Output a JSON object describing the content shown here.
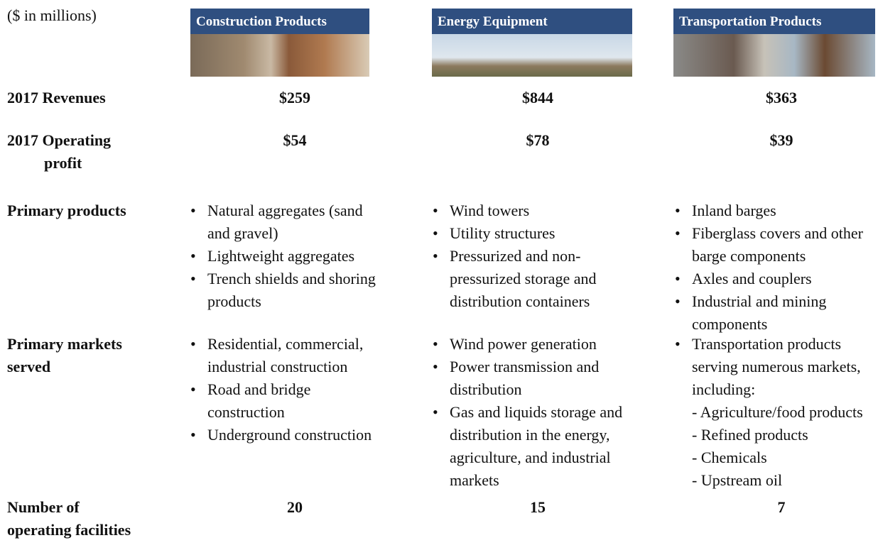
{
  "note": "($ in millions)",
  "columns": [
    {
      "title": "Construction Products"
    },
    {
      "title": "Energy Equipment"
    },
    {
      "title": "Transportation Products"
    }
  ],
  "rows": [
    {
      "label": [
        "2017 Revenues"
      ],
      "values": [
        "$259",
        "$844",
        "$363"
      ]
    },
    {
      "label": [
        "2017 Operating",
        "profit"
      ],
      "values": [
        "$54",
        "$78",
        "$39"
      ]
    },
    {
      "label": [
        "Primary products"
      ],
      "lists": [
        [
          {
            "text": "Natural aggregates (sand and gravel)"
          },
          {
            "text": "Lightweight aggregates"
          },
          {
            "text": "Trench shields and shoring products"
          }
        ],
        [
          {
            "text": "Wind towers"
          },
          {
            "text": "Utility structures"
          },
          {
            "text": "Pressurized and non-pressurized storage and distribution containers"
          }
        ],
        [
          {
            "text": "Inland barges"
          },
          {
            "text": "Fiberglass covers and other barge components"
          },
          {
            "text": "Axles and couplers"
          },
          {
            "text": "Industrial and mining components"
          }
        ]
      ]
    },
    {
      "label": [
        "Primary markets",
        "served"
      ],
      "lists": [
        [
          {
            "text": "Residential, commercial, industrial construction"
          },
          {
            "text": "Road and bridge construction"
          },
          {
            "text": "Underground construction"
          }
        ],
        [
          {
            "text": "Wind power generation"
          },
          {
            "text": "Power transmission and distribution"
          },
          {
            "text": "Gas and liquids storage and distribution in the energy, agriculture, and industrial markets"
          }
        ],
        [
          {
            "text": "Transportation products serving numerous markets, including:",
            "sub": [
              "- Agriculture/food products",
              "- Refined products",
              "- Chemicals",
              "- Upstream oil"
            ]
          }
        ]
      ]
    },
    {
      "label": [
        "Number of",
        "operating facilities"
      ],
      "values": [
        "20",
        "15",
        "7"
      ]
    }
  ]
}
